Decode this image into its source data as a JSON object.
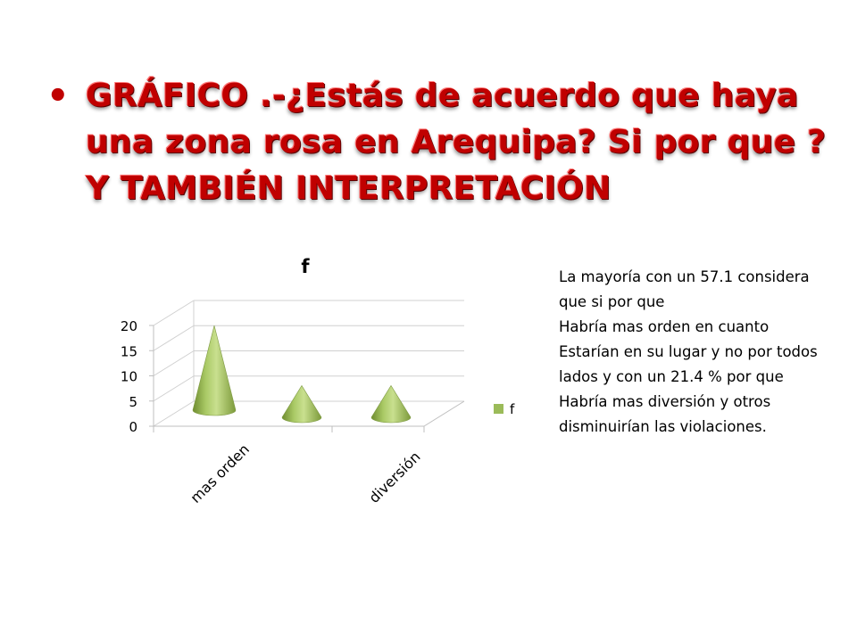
{
  "slide": {
    "bullet": "•",
    "title": "GRÁFICO  .-¿Estás de acuerdo que haya una zona rosa en Arequipa? Si por que ?Y TAMBIÉN INTERPRETACIÓN"
  },
  "chart_data": {
    "type": "bar",
    "shape": "cone-3d",
    "title": "f",
    "categories": [
      "mas orden",
      "diversión",
      ""
    ],
    "tick_labels_shown": [
      "mas orden",
      "diversión"
    ],
    "series": [
      {
        "name": "f",
        "values": [
          16,
          6,
          6
        ]
      }
    ],
    "yticks": [
      "0",
      "5",
      "10",
      "15",
      "20"
    ],
    "ylim": [
      0,
      20
    ],
    "grid": true,
    "legend": "right",
    "color": "#9bbb59"
  },
  "interpretation": [
    "La mayoría con un 57.1 considera que si por que",
    "Habría mas orden en cuanto",
    "Estarían en su lugar y no por todos lados  y con un 21.4 % por que",
    "Habría mas diversión y otros disminuirían las violaciones."
  ]
}
